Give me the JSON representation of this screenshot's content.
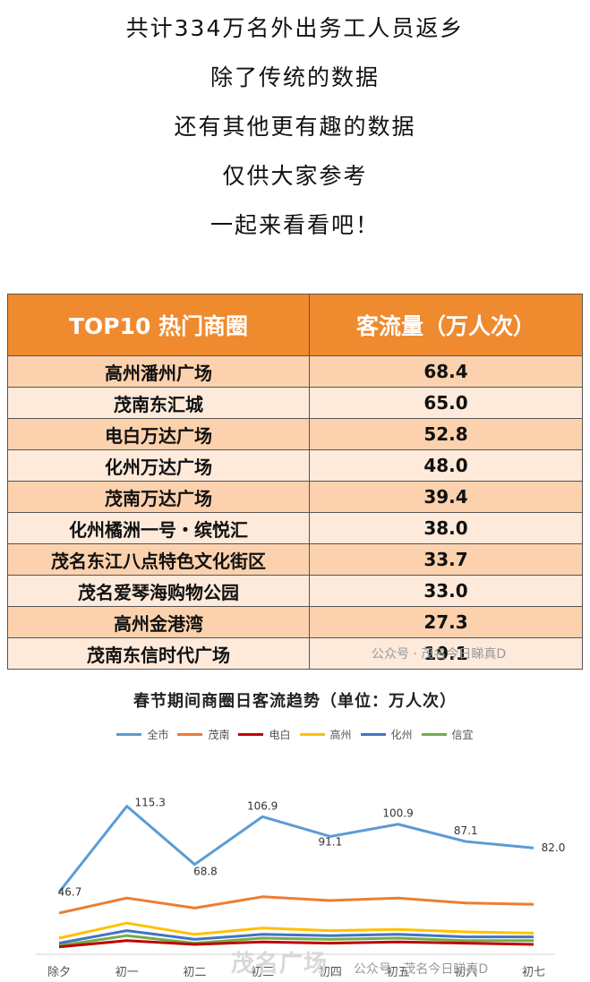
{
  "intro": [
    "共计334万名外出务工人员返乡",
    "除了传统的数据",
    "还有其他更有趣的数据",
    "仅供大家参考",
    "一起来看看吧！"
  ],
  "table": {
    "headers": [
      "TOP10 热门商圈",
      "客流量（万人次）"
    ],
    "rows": [
      [
        "高州潘州广场",
        "68.4"
      ],
      [
        "茂南东汇城",
        "65.0"
      ],
      [
        "电白万达广场",
        "52.8"
      ],
      [
        "化州万达广场",
        "48.0"
      ],
      [
        "茂南万达广场",
        "39.4"
      ],
      [
        "化州橘洲一号・缤悦汇",
        "38.0"
      ],
      [
        "茂名东江八点特色文化街区",
        "33.7"
      ],
      [
        "茂名爱琴海购物公园",
        "33.0"
      ],
      [
        "高州金港湾",
        "27.3"
      ],
      [
        "茂南东信时代广场",
        "19.1"
      ]
    ]
  },
  "watermarks": {
    "table": "公众号 · 茂名今日睇真D",
    "chart": "公众号 · 茂名今日睇真D",
    "site": "茂名广场"
  },
  "chart_data": {
    "type": "line",
    "title": "春节期间商圈日客流趋势（单位：万人次）",
    "categories": [
      "除夕",
      "初一",
      "初二",
      "初三",
      "初四",
      "初五",
      "初六",
      "初七"
    ],
    "series": [
      {
        "name": "全市",
        "color": "#5b9bd5",
        "values": [
          46.7,
          115.3,
          68.8,
          106.9,
          91.1,
          100.9,
          87.1,
          82.0
        ],
        "labels": [
          "46.7",
          "115.3",
          "68.8",
          "106.9",
          "91.1",
          "100.9",
          "87.1",
          "82.0"
        ]
      },
      {
        "name": "茂南",
        "color": "#ed7d31",
        "values": [
          30,
          42,
          34,
          43,
          40,
          42,
          38,
          37
        ]
      },
      {
        "name": "电白",
        "color": "#c00000",
        "values": [
          3,
          8,
          5,
          7,
          6,
          7,
          6,
          5
        ]
      },
      {
        "name": "高州",
        "color": "#ffc000",
        "values": [
          10,
          22,
          13,
          18,
          16,
          17,
          15,
          14
        ]
      },
      {
        "name": "化州",
        "color": "#4472c4",
        "values": [
          6,
          16,
          9,
          13,
          12,
          13,
          11,
          11
        ]
      },
      {
        "name": "信宜",
        "color": "#70ad47",
        "values": [
          4,
          12,
          6,
          10,
          9,
          10,
          8,
          8
        ]
      }
    ],
    "ylim": [
      0,
      130
    ]
  }
}
